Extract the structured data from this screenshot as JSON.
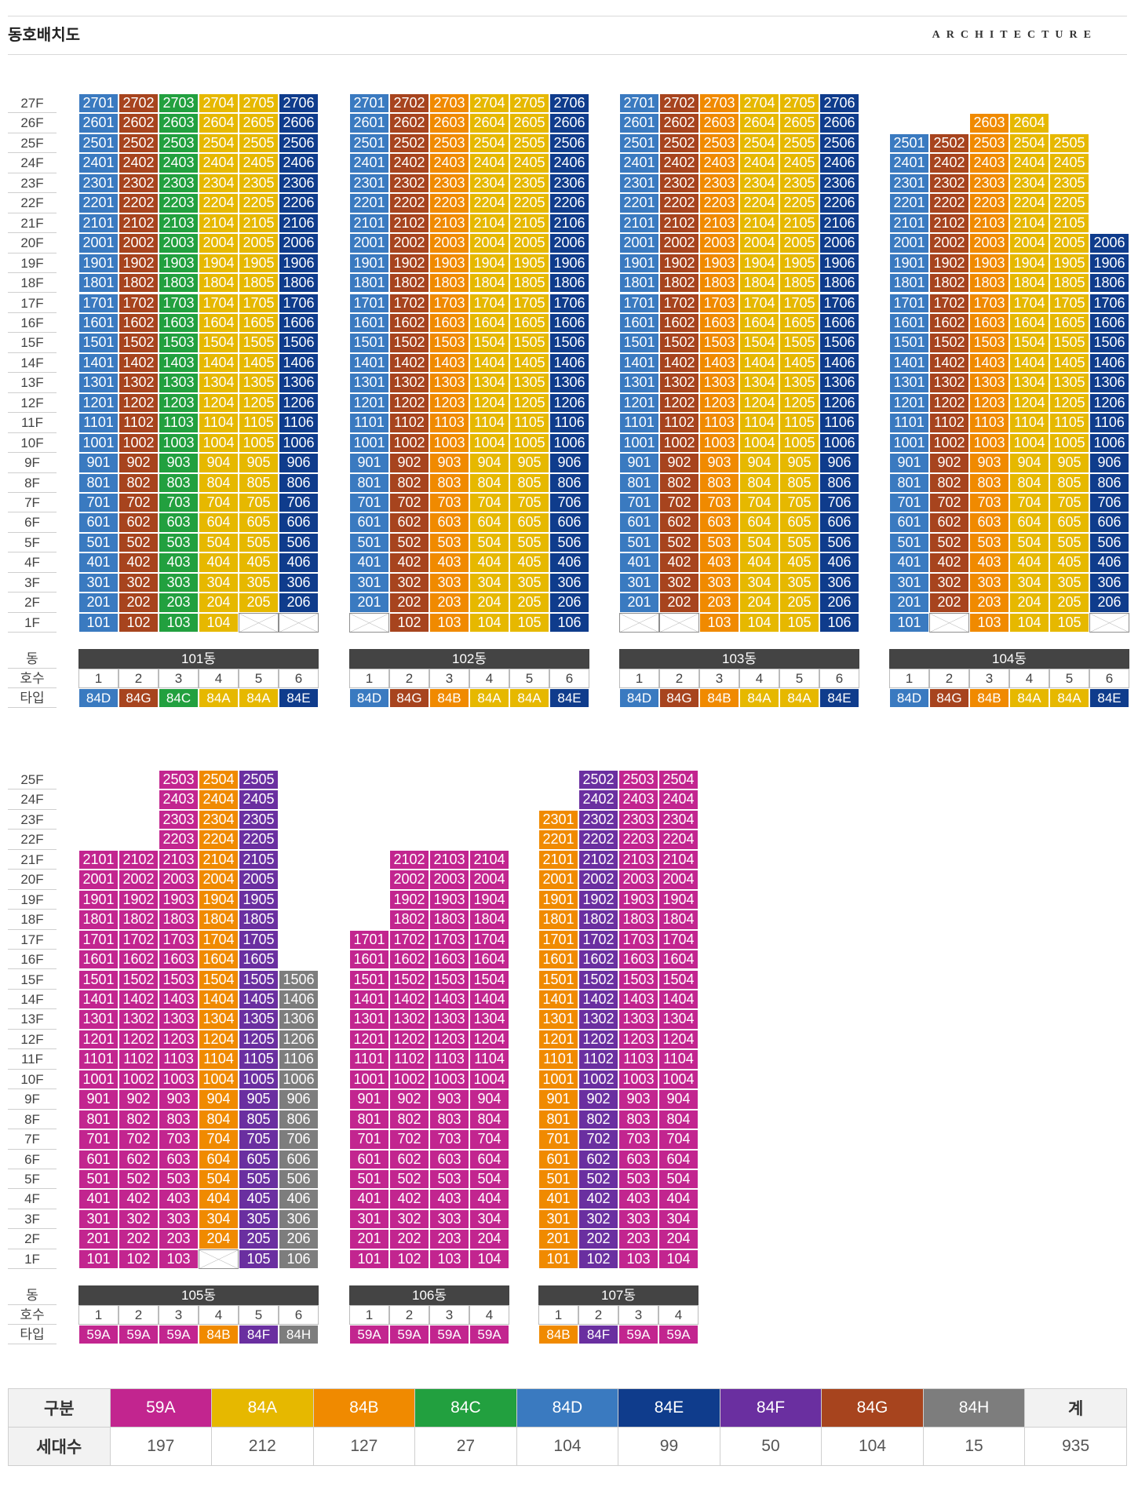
{
  "page": {
    "title": "동호배치도",
    "brand": "ARCHITECTURE"
  },
  "labels": {
    "dong": "동",
    "ho": "호수",
    "type": "타입"
  },
  "colors": {
    "59A": "#c2258f",
    "84A": "#e6b800",
    "84B": "#f08a00",
    "84C": "#22a03f",
    "84D": "#3a7ac0",
    "84E": "#0f3c8c",
    "84F": "#6a2fa0",
    "84G": "#a7441e",
    "84H": "#7d7d7d"
  },
  "rows": [
    {
      "floors": [
        "27F",
        "26F",
        "25F",
        "24F",
        "23F",
        "22F",
        "21F",
        "20F",
        "19F",
        "18F",
        "17F",
        "16F",
        "15F",
        "14F",
        "13F",
        "12F",
        "11F",
        "10F",
        "9F",
        "8F",
        "7F",
        "6F",
        "5F",
        "4F",
        "3F",
        "2F",
        "1F"
      ],
      "buildings": [
        {
          "name": "101동",
          "units": [
            "1",
            "2",
            "3",
            "4",
            "5",
            "6"
          ],
          "types": [
            "84D",
            "84G",
            "84C",
            "84A",
            "84A",
            "84E"
          ],
          "top": [
            27,
            27,
            27,
            27,
            27,
            27
          ],
          "bottom": [
            1,
            1,
            1,
            1,
            2,
            2
          ],
          "blank": [
            0,
            0,
            0,
            0,
            1,
            1
          ]
        },
        {
          "name": "102동",
          "units": [
            "1",
            "2",
            "3",
            "4",
            "5",
            "6"
          ],
          "types": [
            "84D",
            "84G",
            "84B",
            "84A",
            "84A",
            "84E"
          ],
          "top": [
            27,
            27,
            27,
            27,
            27,
            27
          ],
          "bottom": [
            2,
            1,
            1,
            1,
            1,
            1
          ],
          "blank": [
            1,
            0,
            0,
            0,
            0,
            0
          ]
        },
        {
          "name": "103동",
          "units": [
            "1",
            "2",
            "3",
            "4",
            "5",
            "6"
          ],
          "types": [
            "84D",
            "84G",
            "84B",
            "84A",
            "84A",
            "84E"
          ],
          "top": [
            27,
            27,
            27,
            27,
            27,
            27
          ],
          "bottom": [
            2,
            2,
            1,
            1,
            1,
            1
          ],
          "blank": [
            1,
            1,
            0,
            0,
            0,
            0
          ]
        },
        {
          "name": "104동",
          "units": [
            "1",
            "2",
            "3",
            "4",
            "5",
            "6"
          ],
          "types": [
            "84D",
            "84G",
            "84B",
            "84A",
            "84A",
            "84E"
          ],
          "top": [
            25,
            25,
            26,
            26,
            25,
            20
          ],
          "bottom": [
            1,
            2,
            1,
            1,
            1,
            2
          ],
          "blank": [
            0,
            1,
            0,
            0,
            0,
            1
          ]
        }
      ]
    },
    {
      "floors": [
        "25F",
        "24F",
        "23F",
        "22F",
        "21F",
        "20F",
        "19F",
        "18F",
        "17F",
        "16F",
        "15F",
        "14F",
        "13F",
        "12F",
        "11F",
        "10F",
        "9F",
        "8F",
        "7F",
        "6F",
        "5F",
        "4F",
        "3F",
        "2F",
        "1F"
      ],
      "buildings": [
        {
          "name": "105동",
          "units": [
            "1",
            "2",
            "3",
            "4",
            "5",
            "6"
          ],
          "types": [
            "59A",
            "59A",
            "59A",
            "84B",
            "84F",
            "84H"
          ],
          "top": [
            21,
            21,
            25,
            25,
            25,
            15
          ],
          "bottom": [
            1,
            1,
            1,
            2,
            1,
            1
          ],
          "blank": [
            0,
            0,
            0,
            1,
            0,
            0
          ]
        },
        {
          "name": "106동",
          "units": [
            "1",
            "2",
            "3",
            "4"
          ],
          "types": [
            "59A",
            "59A",
            "59A",
            "59A"
          ],
          "top": [
            17,
            21,
            21,
            21
          ],
          "bottom": [
            1,
            1,
            1,
            1
          ],
          "blank": [
            0,
            0,
            0,
            0
          ]
        },
        {
          "name": "107동",
          "units": [
            "1",
            "2",
            "3",
            "4"
          ],
          "types": [
            "84B",
            "84F",
            "59A",
            "59A"
          ],
          "top": [
            23,
            25,
            25,
            25
          ],
          "bottom": [
            1,
            1,
            1,
            1
          ],
          "blank": [
            0,
            0,
            0,
            0
          ]
        }
      ]
    }
  ],
  "legend": {
    "header_label": "구분",
    "count_label": "세대수",
    "types": [
      "59A",
      "84A",
      "84B",
      "84C",
      "84D",
      "84E",
      "84F",
      "84G",
      "84H"
    ],
    "counts": [
      "197",
      "212",
      "127",
      "27",
      "104",
      "99",
      "50",
      "104",
      "15"
    ],
    "total_label": "계",
    "total": "935"
  }
}
